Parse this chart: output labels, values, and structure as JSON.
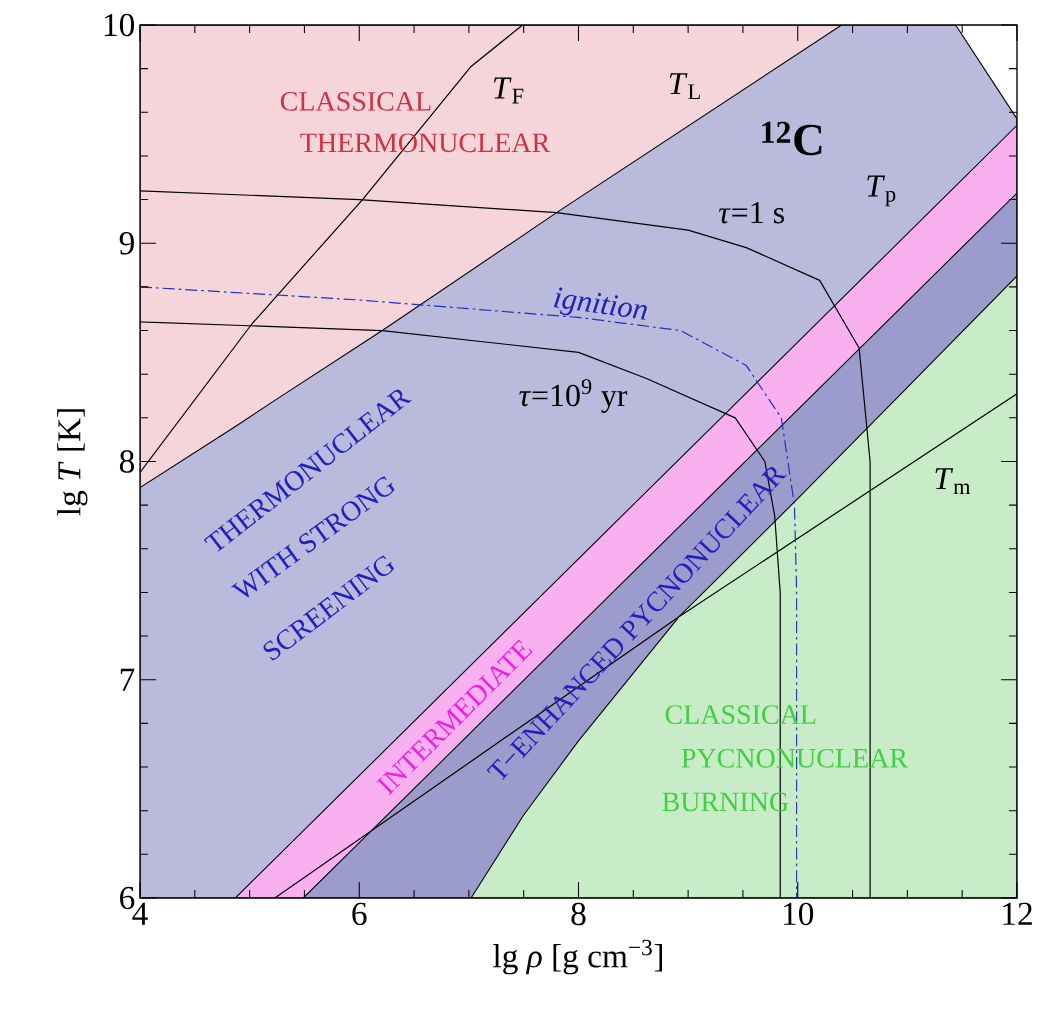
{
  "chart_data": {
    "type": "line",
    "xlabel": "lg *ρ* [g cm$^{−3}$]",
    "ylabel": "lg *T* [K]",
    "xlim": [
      4,
      12
    ],
    "ylim": [
      6,
      10
    ],
    "xticks": [
      4,
      6,
      8,
      10,
      12
    ],
    "yticks": [
      6,
      7,
      8,
      9,
      10
    ],
    "series": [
      {
        "type": "area",
        "color": "#f5d5d9",
        "x": [
          4,
          10.4
        ],
        "values": [
          10,
          10
        ]
      },
      {
        "type": "area",
        "color": "#babadc",
        "x": [
          4,
          4.87,
          5.23,
          6.21,
          7.8,
          10.4,
          11.44,
          12
        ],
        "values": [
          7.88,
          8.16,
          8.28,
          8.6,
          9.14,
          10,
          10,
          9.57
        ]
      },
      {
        "type": "area",
        "color": "#f8b0f1",
        "x": [
          4.87,
          12
        ],
        "values": [
          6,
          9.54
        ]
      },
      {
        "type": "area",
        "color": "#9c9ccc",
        "x": [
          5.49,
          12
        ],
        "values": [
          6,
          9.23
        ]
      },
      {
        "type": "area",
        "color": "#c8ecc8",
        "x": [
          7.02,
          7.5,
          8,
          8.92,
          10,
          11,
          12
        ],
        "values": [
          6,
          6.38,
          6.72,
          7.29,
          7.83,
          8.34,
          8.85
        ]
      },
      {
        "color": "#000000",
        "x": [
          4,
          5.02,
          6.03,
          7.02,
          7.49
        ],
        "values": [
          7.95,
          8.63,
          9.2,
          9.81,
          10
        ]
      },
      {
        "color": "#000000",
        "x": [
          5.23,
          8.92,
          12
        ],
        "values": [
          6,
          7.29,
          8.31
        ]
      },
      {
        "color": "#000000",
        "x": [
          4,
          6,
          7.8,
          9,
          9.53,
          10.2,
          10.56,
          10.66,
          10.66
        ],
        "values": [
          9.24,
          9.2,
          9.14,
          9.06,
          8.98,
          8.83,
          8.52,
          8.0,
          6
        ]
      },
      {
        "color": "#000000",
        "x": [
          4,
          6.21,
          8,
          8.62,
          9.43,
          9.7,
          9.79,
          9.84,
          9.84
        ],
        "values": [
          8.64,
          8.6,
          8.5,
          8.38,
          8.2,
          8.0,
          7.75,
          7.4,
          6
        ]
      },
      {
        "color": "#2030c0",
        "line_style": "dashed",
        "x": [
          4,
          6,
          8,
          8.93,
          9.53,
          9.85,
          9.97,
          9.99,
          9.99
        ],
        "values": [
          8.8,
          8.74,
          8.66,
          8.6,
          8.44,
          8.2,
          7.8,
          7.4,
          6
        ]
      }
    ],
    "annotations": [
      "CLASSICAL",
      "THERMONUCLEAR",
      "*T*$_{F}$",
      "*T*$_{L}$",
      "$^{12}$C",
      "*τ*=1 s",
      "*T*$_{p}$",
      "ignition",
      "*τ*=10$^{9}$ yr",
      "*T*$_{m}$",
      "THERMONUCLEAR",
      "WITH STRONG",
      "SCREENING",
      "INTERMEDIATE",
      "T−ENHANCED PYCNONUCLEAR",
      "CLASSICAL",
      "PYCNONUCLEAR",
      "BURNING"
    ]
  }
}
